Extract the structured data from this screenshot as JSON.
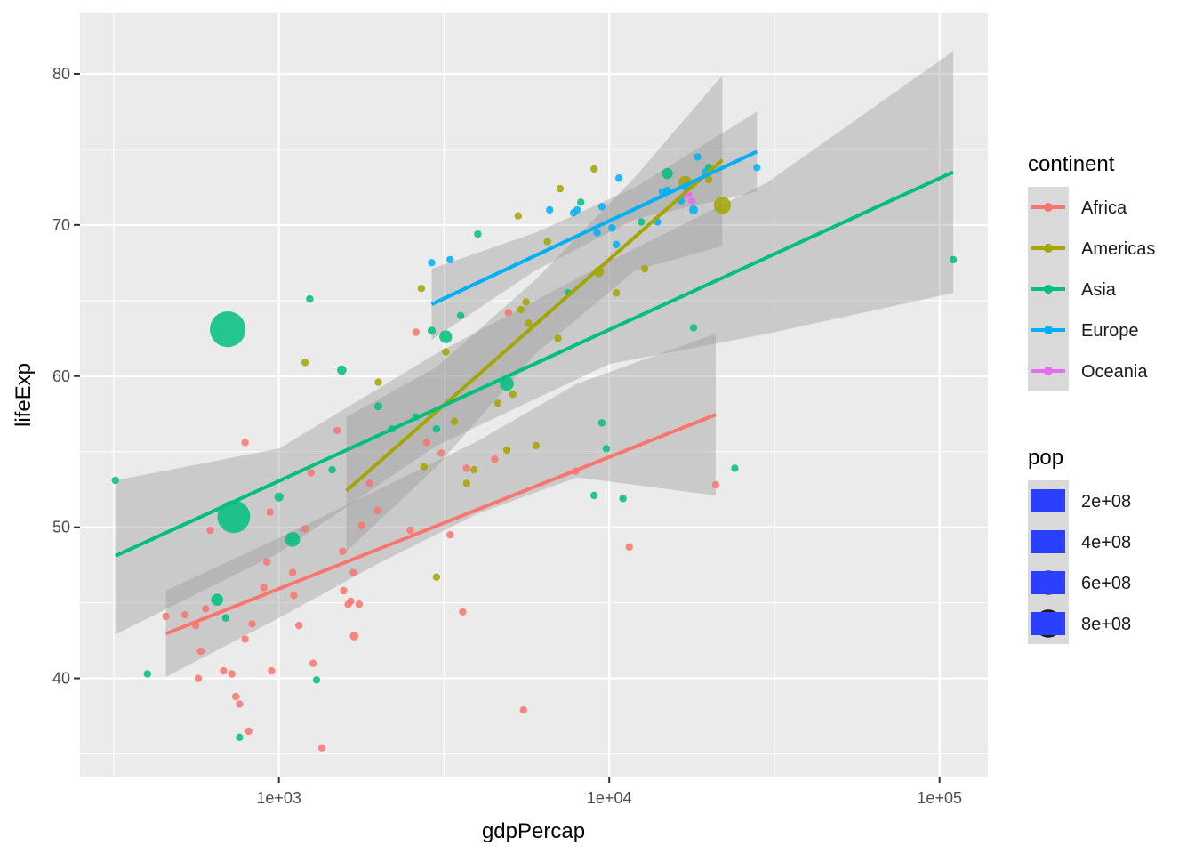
{
  "chart_data": {
    "type": "scatter",
    "title": "",
    "xlabel": "gdpPercap",
    "ylabel": "lifeExp",
    "x_scale": "log10",
    "xlim": [
      250,
      140000
    ],
    "ylim": [
      33.5,
      84
    ],
    "x_ticks": [
      1000,
      10000,
      100000
    ],
    "x_tick_labels": [
      "1e+03",
      "1e+04",
      "1e+05"
    ],
    "y_ticks": [
      40,
      50,
      60,
      70,
      80
    ],
    "y_tick_labels": [
      "40",
      "50",
      "60",
      "70",
      "80"
    ],
    "grid": true,
    "legend_position": "right",
    "color_legend": {
      "title": "continent",
      "entries": [
        {
          "label": "Africa",
          "color": "#F8766D"
        },
        {
          "label": "Americas",
          "color": "#A3A500"
        },
        {
          "label": "Asia",
          "color": "#00BF7D"
        },
        {
          "label": "Europe",
          "color": "#00B0F6"
        },
        {
          "label": "Oceania",
          "color": "#E76BF3"
        }
      ]
    },
    "size_legend": {
      "title": "pop",
      "color": "#2a3fff",
      "entries": [
        {
          "label": "2e+08",
          "value": 200000000
        },
        {
          "label": "4e+08",
          "value": 400000000
        },
        {
          "label": "6e+08",
          "value": 600000000
        },
        {
          "label": "8e+08",
          "value": 800000000
        }
      ]
    },
    "series": [
      {
        "name": "Africa",
        "color": "#F8766D",
        "points": [
          [
            455,
            44.1
          ],
          [
            520,
            44.2
          ],
          [
            560,
            43.5
          ],
          [
            570,
            40.0
          ],
          [
            580,
            41.8
          ],
          [
            600,
            44.6
          ],
          [
            620,
            49.8
          ],
          [
            680,
            40.5
          ],
          [
            720,
            40.3
          ],
          [
            740,
            38.8
          ],
          [
            760,
            38.3
          ],
          [
            790,
            42.6
          ],
          [
            790,
            55.6
          ],
          [
            810,
            36.5
          ],
          [
            830,
            43.6
          ],
          [
            900,
            46.0
          ],
          [
            920,
            47.7
          ],
          [
            940,
            51.0
          ],
          [
            950,
            40.5
          ],
          [
            1100,
            47.0
          ],
          [
            1110,
            45.5
          ],
          [
            1150,
            43.5
          ],
          [
            1200,
            49.9
          ],
          [
            1250,
            53.6
          ],
          [
            1270,
            41.0
          ],
          [
            1350,
            35.4
          ],
          [
            1500,
            56.4
          ],
          [
            1560,
            48.4
          ],
          [
            1570,
            45.8
          ],
          [
            1620,
            44.9
          ],
          [
            1650,
            45.1
          ],
          [
            1680,
            47.0
          ],
          [
            1690,
            42.8
          ],
          [
            1750,
            44.9
          ],
          [
            1780,
            50.1
          ],
          [
            1880,
            52.9
          ],
          [
            1990,
            51.1
          ],
          [
            2500,
            49.8
          ],
          [
            2600,
            62.9
          ],
          [
            2800,
            55.6
          ],
          [
            3100,
            54.9
          ],
          [
            3300,
            49.5
          ],
          [
            3600,
            44.4
          ],
          [
            3700,
            53.9
          ],
          [
            4500,
            54.5
          ],
          [
            4950,
            64.2
          ],
          [
            5500,
            37.9
          ],
          [
            7900,
            53.7
          ],
          [
            11500,
            48.7
          ],
          [
            21000,
            52.8
          ]
        ],
        "pop": [
          15000000,
          5000000,
          12000000,
          6000000,
          13000000,
          10000000,
          8000000,
          10000000,
          8000000,
          6000000,
          2000000,
          19000000,
          8000000,
          6000000,
          12000000,
          7000000,
          17000000,
          21000000,
          4000000,
          21000000,
          12000000,
          6000000,
          22000000,
          25000000,
          12000000,
          3000000,
          1500000,
          11000000,
          27000000,
          17000000,
          25000000,
          22000000,
          78000000,
          26000000,
          26000000,
          43000000,
          40000000,
          37000000,
          1000000,
          43000000,
          8000000,
          4000000,
          3000000,
          8000000,
          50000000,
          2000000,
          22000000,
          45000000,
          1000000,
          1000000
        ],
        "trend": [
          [
            455,
            42.95
          ],
          [
            21000,
            57.45
          ]
        ],
        "band": [
          [
            455,
            40.1,
            45.8
          ],
          [
            1000,
            44.0,
            49.3
          ],
          [
            2000,
            47.6,
            52.5
          ],
          [
            4000,
            50.9,
            55.7
          ],
          [
            8000,
            53.3,
            59.5
          ],
          [
            21000,
            52.1,
            62.8
          ]
        ]
      },
      {
        "name": "Americas",
        "color": "#A3A500",
        "points": [
          [
            1200,
            60.9
          ],
          [
            2000,
            59.6
          ],
          [
            2700,
            65.8
          ],
          [
            2750,
            54.0
          ],
          [
            3000,
            46.7
          ],
          [
            3200,
            61.6
          ],
          [
            3400,
            57.0
          ],
          [
            3700,
            52.9
          ],
          [
            3900,
            53.8
          ],
          [
            4600,
            58.2
          ],
          [
            4900,
            55.1
          ],
          [
            5100,
            58.8
          ],
          [
            5300,
            70.6
          ],
          [
            5400,
            64.4
          ],
          [
            5600,
            64.9
          ],
          [
            5700,
            63.5
          ],
          [
            6000,
            55.4
          ],
          [
            6500,
            68.9
          ],
          [
            7000,
            62.5
          ],
          [
            7100,
            72.4
          ],
          [
            9000,
            73.7
          ],
          [
            9300,
            66.9
          ],
          [
            10500,
            65.5
          ],
          [
            12800,
            67.1
          ],
          [
            17000,
            72.8
          ],
          [
            20000,
            73.0
          ],
          [
            22000,
            71.3
          ]
        ],
        "pop": [
          35000000,
          25000000,
          4000000,
          8000000,
          9000000,
          10000000,
          8000000,
          5000000,
          4000000,
          8000000,
          3000000,
          5000000,
          6000000,
          10000000,
          6000000,
          12000000,
          8000000,
          3000000,
          35000000,
          10000000,
          4000000,
          108000000,
          28000000,
          40000000,
          190000000,
          33000000,
          301000000
        ],
        "trend": [
          [
            1600,
            52.4
          ],
          [
            22000,
            74.3
          ]
        ],
        "band": [
          [
            1600,
            48.4,
            57.3
          ],
          [
            3000,
            54.0,
            60.6
          ],
          [
            6000,
            61.5,
            66.4
          ],
          [
            12000,
            67.0,
            73.2
          ],
          [
            22000,
            68.6,
            79.9
          ]
        ]
      },
      {
        "name": "Asia",
        "color": "#00BF7D",
        "points": [
          [
            320,
            53.1
          ],
          [
            400,
            40.3
          ],
          [
            650,
            45.2
          ],
          [
            690,
            44.0
          ],
          [
            700,
            63.1
          ],
          [
            730,
            50.7
          ],
          [
            760,
            36.1
          ],
          [
            1000,
            52.0
          ],
          [
            1100,
            49.2
          ],
          [
            1240,
            65.1
          ],
          [
            1300,
            39.9
          ],
          [
            1450,
            53.8
          ],
          [
            1550,
            60.4
          ],
          [
            2000,
            58.0
          ],
          [
            2200,
            56.5
          ],
          [
            2600,
            57.3
          ],
          [
            2900,
            63.0
          ],
          [
            3000,
            56.5
          ],
          [
            3200,
            62.6
          ],
          [
            3550,
            64.0
          ],
          [
            4000,
            69.4
          ],
          [
            4900,
            59.5
          ],
          [
            7500,
            65.5
          ],
          [
            8200,
            71.5
          ],
          [
            9000,
            52.1
          ],
          [
            9500,
            56.9
          ],
          [
            9800,
            55.2
          ],
          [
            11000,
            51.9
          ],
          [
            12500,
            70.2
          ],
          [
            15000,
            73.4
          ],
          [
            18000,
            63.2
          ],
          [
            20000,
            73.8
          ],
          [
            24000,
            53.9
          ],
          [
            110000,
            67.7
          ]
        ],
        "pop": [
          31000000,
          13000000,
          150000000,
          47000000,
          1318000000,
          1110000000,
          9000000,
          85000000,
          223000000,
          20000000,
          5000000,
          28000000,
          92000000,
          65000000,
          23000000,
          3000000,
          69000000,
          6000000,
          169000000,
          48000000,
          4000000,
          200000000,
          5000000,
          6000000,
          1000000,
          10000000,
          23000000,
          6000000,
          49000000,
          127000000,
          1000000,
          22000000,
          2000000,
          1000000
        ],
        "trend": [
          [
            320,
            48.1
          ],
          [
            110000,
            73.5
          ]
        ],
        "band": [
          [
            320,
            42.9,
            53.1
          ],
          [
            1000,
            48.3,
            55.2
          ],
          [
            3000,
            55.4,
            61.5
          ],
          [
            10000,
            60.8,
            67.6
          ],
          [
            30000,
            62.8,
            72.8
          ],
          [
            110000,
            65.5,
            81.5
          ]
        ]
      },
      {
        "name": "Europe",
        "color": "#00B0F6",
        "points": [
          [
            2900,
            67.5
          ],
          [
            3300,
            67.7
          ],
          [
            6600,
            71.0
          ],
          [
            7800,
            70.8
          ],
          [
            8000,
            71.0
          ],
          [
            9200,
            69.5
          ],
          [
            9500,
            71.2
          ],
          [
            10200,
            69.8
          ],
          [
            10500,
            68.7
          ],
          [
            10700,
            73.1
          ],
          [
            14500,
            72.2
          ],
          [
            15000,
            72.3
          ],
          [
            17000,
            72.5
          ],
          [
            18000,
            71.0
          ],
          [
            18500,
            74.5
          ],
          [
            19500,
            73.5
          ],
          [
            28000,
            73.8
          ],
          [
            14000,
            70.2
          ],
          [
            16500,
            71.6
          ]
        ],
        "pop": [
          4000000,
          4000000,
          9000000,
          10000000,
          10000000,
          8000000,
          10000000,
          9000000,
          38000000,
          4000000,
          60000000,
          57000000,
          59000000,
          82000000,
          5000000,
          8000000,
          5000000,
          5000000,
          10000000
        ],
        "trend": [
          [
            2900,
            64.75
          ],
          [
            28000,
            74.85
          ]
        ],
        "band": [
          [
            2900,
            62.4,
            67.1
          ],
          [
            6000,
            67.0,
            69.5
          ],
          [
            12000,
            70.4,
            72.5
          ],
          [
            28000,
            72.2,
            77.5
          ]
        ]
      },
      {
        "name": "Oceania",
        "color": "#E76BF3",
        "points": [
          [
            17000,
            72.0
          ],
          [
            17800,
            71.6
          ]
        ],
        "pop": [
          3000000,
          16000000
        ],
        "trend": [
          [
            17000,
            71.9
          ],
          [
            17800,
            72.1
          ]
        ],
        "band": []
      }
    ]
  }
}
